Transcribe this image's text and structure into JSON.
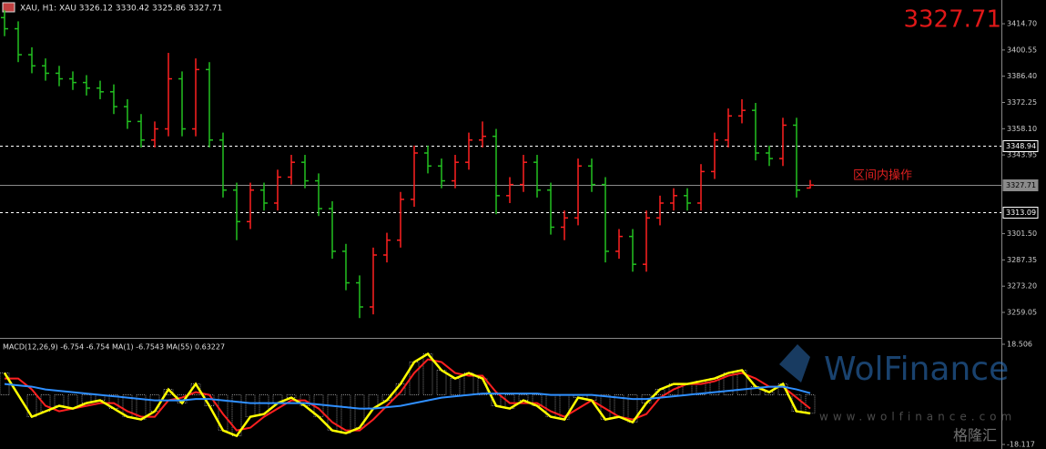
{
  "header": {
    "symbol_line": "XAU, H1:  XAU  3326.12 3330.42 3325.86 3327.71",
    "last_price": 3327.71
  },
  "chart_data": [
    {
      "type": "ohlc",
      "up_color": "#ff2020",
      "down_color": "#22c020",
      "open": [
        3418,
        3412,
        3398,
        3392,
        3388,
        3385,
        3383,
        3380,
        3378,
        3370,
        3362,
        3352,
        3358,
        3385,
        3358,
        3390,
        3352,
        3325,
        3308,
        3325,
        3318,
        3332,
        3340,
        3330,
        3315,
        3292,
        3275,
        3262,
        3290,
        3298,
        3320,
        3345,
        3338,
        3330,
        3340,
        3352,
        3354,
        3322,
        3328,
        3340,
        3325,
        3305,
        3310,
        3338,
        3328,
        3292,
        3300,
        3285,
        3310,
        3318,
        3322,
        3318,
        3335,
        3352,
        3365,
        3368,
        3345,
        3342,
        3360,
        3326.12
      ],
      "high": [
        3422,
        3416,
        3402,
        3396,
        3392,
        3389,
        3387,
        3384,
        3382,
        3374,
        3366,
        3362,
        3399,
        3389,
        3396,
        3394,
        3356,
        3329,
        3329,
        3329,
        3336,
        3344,
        3344,
        3334,
        3319,
        3296,
        3279,
        3294,
        3302,
        3324,
        3349,
        3349,
        3342,
        3344,
        3356,
        3362,
        3358,
        3332,
        3344,
        3344,
        3329,
        3314,
        3342,
        3342,
        3332,
        3304,
        3304,
        3314,
        3322,
        3326,
        3326,
        3339,
        3356,
        3369,
        3374,
        3372,
        3349,
        3364,
        3364,
        3330.42
      ],
      "low": [
        3408,
        3394,
        3388,
        3384,
        3381,
        3379,
        3376,
        3374,
        3366,
        3358,
        3348,
        3348,
        3354,
        3354,
        3354,
        3348,
        3321,
        3298,
        3304,
        3314,
        3314,
        3328,
        3326,
        3311,
        3288,
        3271,
        3256,
        3258,
        3286,
        3294,
        3316,
        3334,
        3326,
        3326,
        3336,
        3348,
        3312,
        3318,
        3324,
        3321,
        3301,
        3298,
        3306,
        3324,
        3286,
        3288,
        3281,
        3281,
        3306,
        3314,
        3314,
        3314,
        3331,
        3348,
        3361,
        3341,
        3338,
        3338,
        3321,
        3325.86
      ],
      "close": [
        3412,
        3398,
        3392,
        3388,
        3385,
        3383,
        3380,
        3378,
        3370,
        3362,
        3352,
        3358,
        3385,
        3358,
        3390,
        3352,
        3325,
        3308,
        3325,
        3318,
        3332,
        3340,
        3330,
        3315,
        3292,
        3275,
        3262,
        3290,
        3298,
        3320,
        3345,
        3338,
        3330,
        3340,
        3352,
        3354,
        3322,
        3328,
        3340,
        3325,
        3305,
        3310,
        3338,
        3328,
        3292,
        3300,
        3285,
        3310,
        3318,
        3322,
        3318,
        3335,
        3352,
        3365,
        3368,
        3345,
        3342,
        3360,
        3325,
        3327.71
      ],
      "ylim": [
        3245.8,
        3427.5
      ],
      "yticks": [
        {
          "value": 3414.7,
          "label": "3414.70"
        },
        3400.55,
        {
          "value": 3386.4,
          "label": "3386.40"
        },
        3372.25,
        {
          "value": 3358.1,
          "label": "3358.10"
        },
        3343.95,
        {
          "value": 3301.5,
          "label": "3301.50"
        },
        3287.35,
        {
          "value": 3273.2,
          "label": "3273.20"
        },
        3259.05
      ],
      "levels": [
        {
          "value": 3348.94,
          "style": "dashed",
          "color": "#ffffff"
        },
        {
          "value": 3327.71,
          "style": "solid",
          "color": "#8a8a8a"
        },
        {
          "value": 3313.09,
          "style": "dashed",
          "color": "#ffffff"
        }
      ],
      "annotation": "区间内操作"
    },
    {
      "type": "macd",
      "title": "MACD(12,26,9) -6.754 -6.754 MA(1) -6.7543 MA(55) 0.63227",
      "ylim": [
        -18.117,
        18.506
      ],
      "yticks": [
        18.506,
        -18.117
      ],
      "series": [
        {
          "color": "#d8d8d8",
          "line_color": "#ffff00",
          "values": [
            8,
            0,
            -8,
            -6,
            -4,
            -5,
            -3,
            -2,
            -5,
            -8,
            -9,
            -6,
            2,
            -3,
            4,
            -4,
            -13,
            -15,
            -8,
            -7,
            -3,
            -1,
            -4,
            -8,
            -13,
            -14,
            -12,
            -5,
            -2,
            4,
            12,
            15,
            9,
            6,
            8,
            6,
            -4,
            -5,
            -2,
            -4,
            -8,
            -9,
            -1,
            -2,
            -9,
            -8,
            -10,
            -3,
            2,
            4,
            4,
            5,
            6,
            8,
            9,
            3,
            1,
            4,
            -6,
            -6.754
          ]
        },
        {
          "color": "#ff2020",
          "values": [
            6,
            6,
            2,
            -4,
            -6,
            -5,
            -4,
            -3,
            -3,
            -6,
            -8,
            -8,
            -2,
            -1,
            1,
            0,
            -7,
            -13,
            -12,
            -8,
            -5,
            -2,
            -2,
            -5,
            -10,
            -13,
            -13,
            -9,
            -4,
            1,
            8,
            13,
            12,
            8,
            7,
            7,
            1,
            -3,
            -3,
            -3,
            -6,
            -8,
            -5,
            -2,
            -5,
            -8,
            -9,
            -7,
            -1,
            2,
            4,
            4,
            5,
            7,
            8,
            6,
            3,
            3,
            -1,
            -5
          ]
        },
        {
          "color": "#2f8fff",
          "values": [
            4,
            3.5,
            3,
            2,
            1.5,
            1,
            0.5,
            0,
            -0.5,
            -1,
            -1.5,
            -2,
            -2,
            -2,
            -1.5,
            -1.5,
            -2,
            -2.5,
            -3,
            -3,
            -3,
            -3,
            -3,
            -3.5,
            -4,
            -4.5,
            -5,
            -5,
            -4.5,
            -4,
            -3,
            -2,
            -1,
            -0.5,
            0,
            0.5,
            0.5,
            0.5,
            0.5,
            0.5,
            0,
            0,
            0,
            0,
            -0.5,
            -1,
            -1.5,
            -1.5,
            -1,
            -0.5,
            0,
            0.5,
            1,
            1.5,
            2,
            2.5,
            3,
            3,
            2,
            0.63227
          ]
        }
      ]
    }
  ],
  "watermark": {
    "brand": "WolFinance",
    "site": "www.wolfinance.com",
    "source": "格隆汇"
  }
}
